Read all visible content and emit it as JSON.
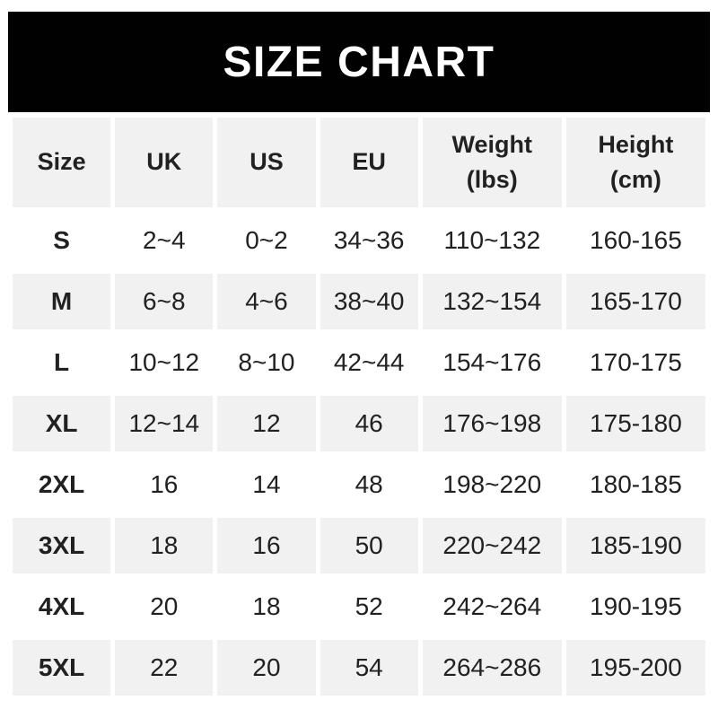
{
  "banner": {
    "title": "SIZE CHART"
  },
  "colors": {
    "banner_bg": "#010101",
    "banner_text": "#ffffff",
    "row_alt_bg": "#f1f1f2",
    "row_bg": "#ffffff",
    "text": "#212121"
  },
  "chart_data": {
    "type": "table",
    "title": "SIZE CHART",
    "columns": [
      "Size",
      "UK",
      "US",
      "EU",
      "Weight\n(lbs)",
      "Height\n(cm)"
    ],
    "rows": [
      [
        "S",
        "2~4",
        "0~2",
        "34~36",
        "110~132",
        "160-165"
      ],
      [
        "M",
        "6~8",
        "4~6",
        "38~40",
        "132~154",
        "165-170"
      ],
      [
        "L",
        "10~12",
        "8~10",
        "42~44",
        "154~176",
        "170-175"
      ],
      [
        "XL",
        "12~14",
        "12",
        "46",
        "176~198",
        "175-180"
      ],
      [
        "2XL",
        "16",
        "14",
        "48",
        "198~220",
        "180-185"
      ],
      [
        "3XL",
        "18",
        "16",
        "50",
        "220~242",
        "185-190"
      ],
      [
        "4XL",
        "20",
        "18",
        "52",
        "242~264",
        "190-195"
      ],
      [
        "5XL",
        "22",
        "20",
        "54",
        "264~286",
        "195-200"
      ]
    ]
  }
}
